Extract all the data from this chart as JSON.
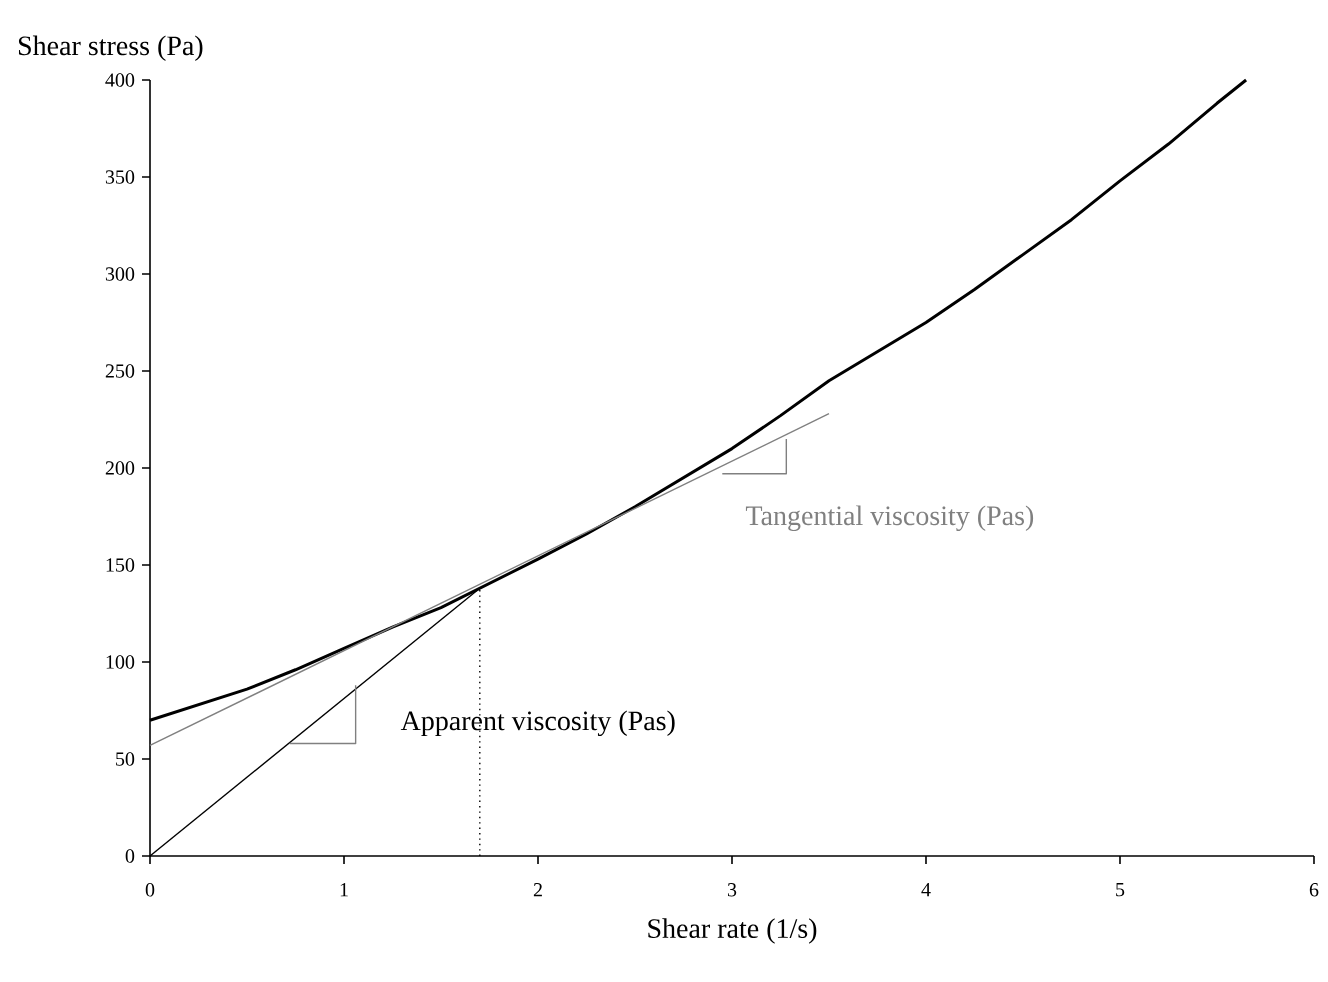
{
  "chart_data": {
    "type": "line",
    "xlabel": "Shear rate (1/s)",
    "ylabel": "Shear stress (Pa)",
    "xlim": [
      0,
      6
    ],
    "xticks": [
      0,
      1,
      2,
      3,
      4,
      5,
      6
    ],
    "ylim": [
      0,
      400
    ],
    "yticks": [
      0,
      50,
      100,
      150,
      200,
      250,
      300,
      350,
      400
    ],
    "series": [
      {
        "color": "#000000",
        "x": [
          0,
          0.25,
          0.5,
          0.75,
          1,
          1.25,
          1.5,
          1.7,
          2,
          2.25,
          2.5,
          2.75,
          3,
          3.25,
          3.5,
          3.75,
          4,
          4.25,
          4.5,
          4.75,
          5,
          5.25,
          5.5,
          5.65
        ],
        "values": [
          70,
          78,
          86,
          96,
          107,
          118,
          128,
          138,
          153,
          166,
          180,
          195,
          210,
          227,
          245,
          260,
          275,
          292,
          310,
          328,
          348,
          367,
          388,
          400
        ]
      },
      {
        "name": "Tangential viscosity (Pas)",
        "color": "#808080",
        "x": [
          0,
          3.5
        ],
        "values": [
          57,
          228
        ]
      },
      {
        "name": "Apparent viscosity (Pas)",
        "color": "#000000",
        "x": [
          0,
          1.7
        ],
        "values": [
          0,
          138
        ]
      },
      {
        "color": "#000000",
        "line_style": "dotted",
        "x": [
          1.7,
          1.7
        ],
        "values": [
          0,
          138
        ]
      },
      {
        "color": "#808080",
        "x": [
          0.72,
          1.06,
          1.06
        ],
        "values": [
          58,
          58,
          88
        ]
      },
      {
        "color": "#808080",
        "x": [
          2.95,
          3.28,
          3.28
        ],
        "values": [
          197,
          197,
          215
        ]
      }
    ]
  }
}
